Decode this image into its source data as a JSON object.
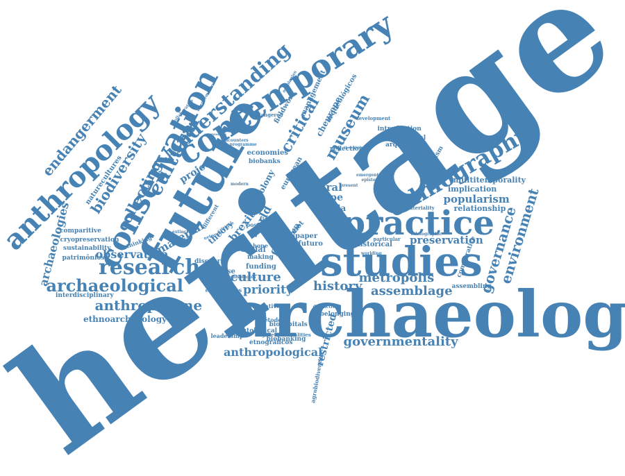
{
  "color": "#4682b4",
  "words": [
    {
      "text": "heritage",
      "weight": 1.0
    },
    {
      "text": "archaeology",
      "weight": 0.55
    },
    {
      "text": "future",
      "weight": 0.45
    },
    {
      "text": "studies",
      "weight": 0.4
    },
    {
      "text": "practice",
      "weight": 0.36
    },
    {
      "text": "contemporary",
      "weight": 0.33
    },
    {
      "text": "conservation",
      "weight": 0.33
    },
    {
      "text": "anthropology",
      "weight": 0.32
    },
    {
      "text": "ethnography",
      "weight": 0.27
    },
    {
      "text": "cultural",
      "weight": 0.25
    },
    {
      "text": "understanding",
      "weight": 0.24
    },
    {
      "text": "research",
      "weight": 0.21
    },
    {
      "text": "archaeological",
      "weight": 0.19
    },
    {
      "text": "biodiversity",
      "weight": 0.17
    },
    {
      "text": "endangerment",
      "weight": 0.16
    },
    {
      "text": "critical",
      "weight": 0.16
    },
    {
      "text": "museum",
      "weight": 0.15
    },
    {
      "text": "collecting",
      "weight": 0.15
    },
    {
      "text": "environment",
      "weight": 0.15
    },
    {
      "text": "governance",
      "weight": 0.14
    },
    {
      "text": "anthropocene",
      "weight": 0.14
    },
    {
      "text": "governmentality",
      "weight": 0.13
    },
    {
      "text": "history",
      "weight": 0.13
    },
    {
      "text": "metropolis",
      "weight": 0.13
    },
    {
      "text": "assemblage",
      "weight": 0.13
    },
    {
      "text": "culture",
      "weight": 0.13
    },
    {
      "text": "archaeologies",
      "weight": 0.12
    },
    {
      "text": "priority",
      "weight": 0.12
    },
    {
      "text": "material",
      "weight": 0.12
    },
    {
      "text": "observation",
      "weight": 0.11
    },
    {
      "text": "anthropological",
      "weight": 0.11
    },
    {
      "text": "natural",
      "weight": 0.11
    },
    {
      "text": "popularism",
      "weight": 0.1
    },
    {
      "text": "preservation",
      "weight": 0.1
    },
    {
      "text": "world",
      "weight": 0.1
    },
    {
      "text": "brexit",
      "weight": 0.1
    },
    {
      "text": "europe",
      "weight": 0.1
    },
    {
      "text": "project",
      "weight": 0.1
    },
    {
      "text": "restricted",
      "weight": 0.1
    },
    {
      "text": "field",
      "weight": 0.1
    },
    {
      "text": "ethnoarchaeology",
      "weight": 0.08
    },
    {
      "text": "theory",
      "weight": 0.08
    },
    {
      "text": "agenda",
      "weight": 0.08
    },
    {
      "text": "multitemporality",
      "weight": 0.08
    },
    {
      "text": "implication",
      "weight": 0.08
    },
    {
      "text": "relationship",
      "weight": 0.08
    },
    {
      "text": "social",
      "weight": 0.08
    },
    {
      "text": "area",
      "weight": 0.08
    },
    {
      "text": "colony",
      "weight": 0.08
    },
    {
      "text": "historical",
      "weight": 0.08
    },
    {
      "text": "paper",
      "weight": 0.08
    },
    {
      "text": "economies",
      "weight": 0.08
    },
    {
      "text": "expertise",
      "weight": 0.07
    },
    {
      "text": "naturecultures",
      "weight": 0.07
    },
    {
      "text": "management",
      "weight": 0.07
    },
    {
      "text": "fieldwork",
      "weight": 0.07
    },
    {
      "text": "arqueológicos",
      "weight": 0.07
    },
    {
      "text": "european",
      "weight": 0.07
    },
    {
      "text": "biobanks",
      "weight": 0.06
    },
    {
      "text": "biobanking",
      "weight": 0.06
    },
    {
      "text": "etnográficos",
      "weight": 0.06
    },
    {
      "text": "biocapitals",
      "weight": 0.06
    },
    {
      "text": "comparative",
      "weight": 0.06
    },
    {
      "text": "sustainability",
      "weight": 0.06
    },
    {
      "text": "patrimônios",
      "weight": 0.06
    },
    {
      "text": "interdisciplinary",
      "weight": 0.06
    },
    {
      "text": "cryopreservation",
      "weight": 0.06
    },
    {
      "text": "comparitive",
      "weight": 0.06
    },
    {
      "text": "assembling",
      "weight": 0.06
    },
    {
      "text": "introduction",
      "weight": 0.06
    },
    {
      "text": "sociomaterial",
      "weight": 0.06
    },
    {
      "text": "arqueologia",
      "weight": 0.06
    },
    {
      "text": "nationalism",
      "weight": 0.06
    },
    {
      "text": "reflection",
      "weight": 0.06
    },
    {
      "text": "funding",
      "weight": 0.06
    },
    {
      "text": "ontological",
      "weight": 0.06
    },
    {
      "text": "discourse",
      "weight": 0.06
    },
    {
      "text": "making",
      "weight": 0.06
    },
    {
      "text": "belonging",
      "weight": 0.06
    },
    {
      "text": "alternative",
      "weight": 0.06
    },
    {
      "text": "leadership",
      "weight": 0.06
    },
    {
      "text": "emergentes",
      "weight": 0.06
    },
    {
      "text": "rethinking",
      "weight": 0.06
    },
    {
      "text": "agrobiodiversity",
      "weight": 0.06
    },
    {
      "text": "governmentalities",
      "weight": 0.05
    },
    {
      "text": "development",
      "weight": 0.05
    },
    {
      "text": "endangered",
      "weight": 0.05
    },
    {
      "text": "futuro",
      "weight": 0.06
    },
    {
      "text": "materiality",
      "weight": 0.05
    },
    {
      "text": "pilot",
      "weight": 0.06
    },
    {
      "text": "hope",
      "weight": 0.05
    },
    {
      "text": "time",
      "weight": 0.05
    },
    {
      "text": "post",
      "weight": 0.05
    },
    {
      "text": "different",
      "weight": 0.05
    },
    {
      "text": "cheurope",
      "weight": 0.08
    },
    {
      "text": "particular",
      "weight": 0.05
    },
    {
      "text": "ethnographic",
      "weight": 0.04
    },
    {
      "text": "distinctive",
      "weight": 0.05
    },
    {
      "text": "worlding",
      "weight": 0.05
    },
    {
      "text": "métodos",
      "weight": 0.05
    },
    {
      "text": "technologies",
      "weight": 0.04
    },
    {
      "text": "extinction",
      "weight": 0.04
    },
    {
      "text": "emergent",
      "weight": 0.04
    },
    {
      "text": "epistemic",
      "weight": 0.04
    },
    {
      "text": "present",
      "weight": 0.04
    },
    {
      "text": "network",
      "weight": 0.04
    },
    {
      "text": "collaborative",
      "weight": 0.04
    },
    {
      "text": "programme",
      "weight": 0.04
    },
    {
      "text": "encounters",
      "weight": 0.04
    },
    {
      "text": "ontologies",
      "weight": 0.04
    },
    {
      "text": "approaches",
      "weight": 0.04
    },
    {
      "text": "thoughtful",
      "weight": 0.04
    },
    {
      "text": "modern",
      "weight": 0.04
    },
    {
      "text": "critique",
      "weight": 0.04
    },
    {
      "text": "agencements",
      "weight": 0.04
    }
  ]
}
